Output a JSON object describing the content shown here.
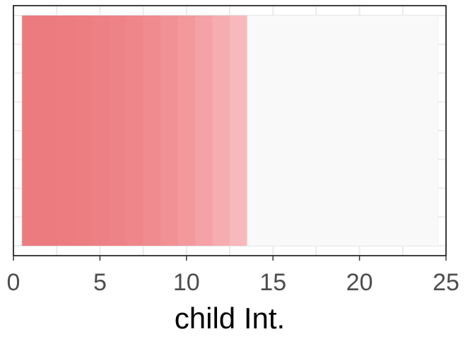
{
  "chart_data": {
    "type": "bar",
    "orientation": "horizontal",
    "categories": [
      "1",
      "2",
      "3",
      "4",
      "5",
      "6",
      "7",
      "8",
      "9",
      "10",
      "11",
      "12",
      "13",
      "14",
      "15",
      "16",
      "17",
      "18",
      "19",
      "20",
      "21",
      "22",
      "23",
      "24"
    ],
    "values": [
      1,
      1,
      1,
      1,
      1,
      1,
      1,
      1,
      1,
      1,
      1,
      1,
      1,
      0,
      0,
      0,
      0,
      0,
      0,
      0,
      0,
      0,
      0,
      0
    ],
    "colors": [
      "#ec7b7f",
      "#ec7b7f",
      "#ec7c80",
      "#ec7d81",
      "#ed8084",
      "#ee8286",
      "#ef868a",
      "#f08b8f",
      "#f19195",
      "#f3999c",
      "#f4a2a5",
      "#f6adaf",
      "#f7b9bb",
      "#f9f9f9",
      "#f9f9f9",
      "#f9f9f9",
      "#f9f9f9",
      "#f9f9f9",
      "#f9f9f9",
      "#f9f9f9",
      "#f9f9f9",
      "#f9f9f9",
      "#f9f9f9",
      "#f9f9f9"
    ],
    "xlim": [
      0,
      25
    ],
    "xticks": [
      "0",
      "5",
      "10",
      "15",
      "20",
      "25"
    ],
    "xlabel": "child Int.",
    "ylabel": "",
    "title": "",
    "grid": true,
    "background_color": "#f9f9f9",
    "grid_color": "#ebebeb"
  }
}
